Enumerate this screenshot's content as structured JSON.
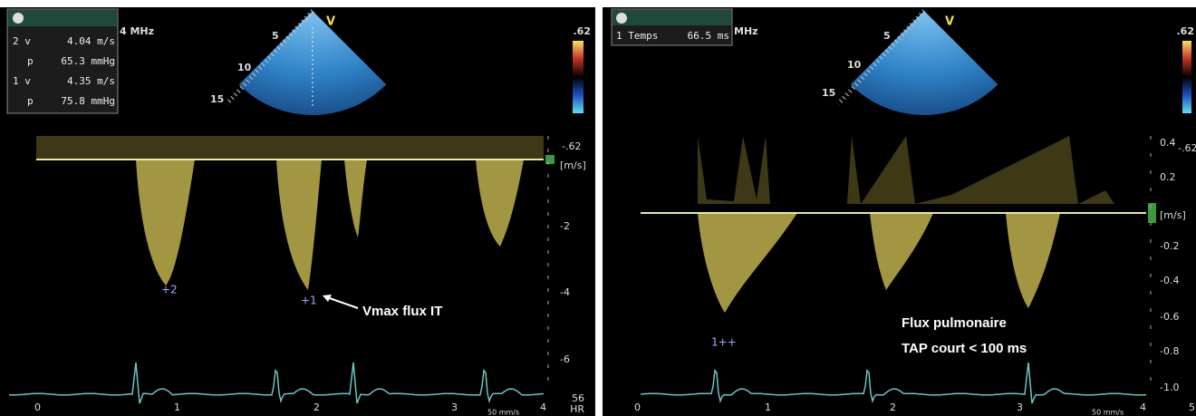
{
  "left": {
    "measurements": [
      [
        "2 v",
        "4.04 m/s"
      ],
      [
        "p",
        "65.3 mmHg"
      ],
      [
        "1 v",
        "4.35 m/s"
      ],
      [
        "p",
        "75.8 mmHg"
      ]
    ],
    "frequency": "4 MHz",
    "depths": [
      "5",
      "10",
      "15"
    ],
    "mode": "V",
    "scale_top": ".62",
    "scale_bottom": "-.62",
    "unit": "[m/s]",
    "velocity_labels": [
      "-2",
      "-4",
      "-6"
    ],
    "markers": [
      "+2",
      "+1"
    ],
    "annotation": "Vmax flux IT",
    "time_labels": [
      "0",
      "1",
      "2",
      "3",
      "4"
    ],
    "hr_value": "56",
    "hr_label": "HR",
    "sweep": "50 mm/s"
  },
  "right": {
    "measurements": [
      [
        "1 Temps",
        "66.5 ms"
      ]
    ],
    "frequency": "MHz",
    "depths": [
      "5",
      "10",
      "15"
    ],
    "mode": "V",
    "scale_top": ".62",
    "scale_bottom": "-.62",
    "unit": "[m/s]",
    "velocity_labels": [
      "0.4",
      "0.2",
      "-0.2",
      "-0.4",
      "-0.6",
      "-0.8",
      "-1.0"
    ],
    "marker": "1++",
    "annotation": [
      "Flux pulmonaire",
      "TAP court < 100 ms"
    ],
    "time_labels": [
      "0",
      "1",
      "2",
      "3",
      "4",
      "5"
    ],
    "sweep": "50 mm/s"
  }
}
